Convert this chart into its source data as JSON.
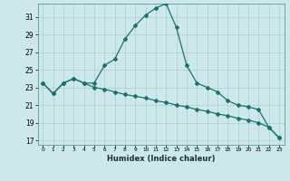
{
  "xlabel": "Humidex (Indice chaleur)",
  "bg_color": "#cce8ea",
  "grid_color": "#aacccc",
  "line_color": "#1e7070",
  "x_values": [
    0,
    1,
    2,
    3,
    4,
    5,
    6,
    7,
    8,
    9,
    10,
    11,
    12,
    13,
    14,
    15,
    16,
    17,
    18,
    19,
    20,
    21,
    22,
    23
  ],
  "humidex": [
    23.5,
    22.3,
    23.5,
    24.0,
    23.5,
    23.5,
    25.5,
    26.2,
    28.5,
    30.0,
    31.2,
    32.0,
    32.5,
    29.8,
    25.5,
    23.5,
    23.0,
    22.5,
    21.5,
    21.0,
    20.8,
    20.5,
    18.5,
    17.3
  ],
  "temp_line": [
    23.5,
    22.3,
    23.5,
    24.0,
    23.5,
    23.0,
    22.8,
    22.5,
    22.2,
    22.0,
    21.8,
    21.5,
    21.3,
    21.0,
    20.8,
    20.5,
    20.3,
    20.0,
    19.8,
    19.5,
    19.3,
    19.0,
    18.5,
    17.3
  ],
  "ylim": [
    16.5,
    32.5
  ],
  "yticks": [
    17,
    19,
    21,
    23,
    25,
    27,
    29,
    31
  ],
  "xlim": [
    -0.5,
    23.5
  ]
}
